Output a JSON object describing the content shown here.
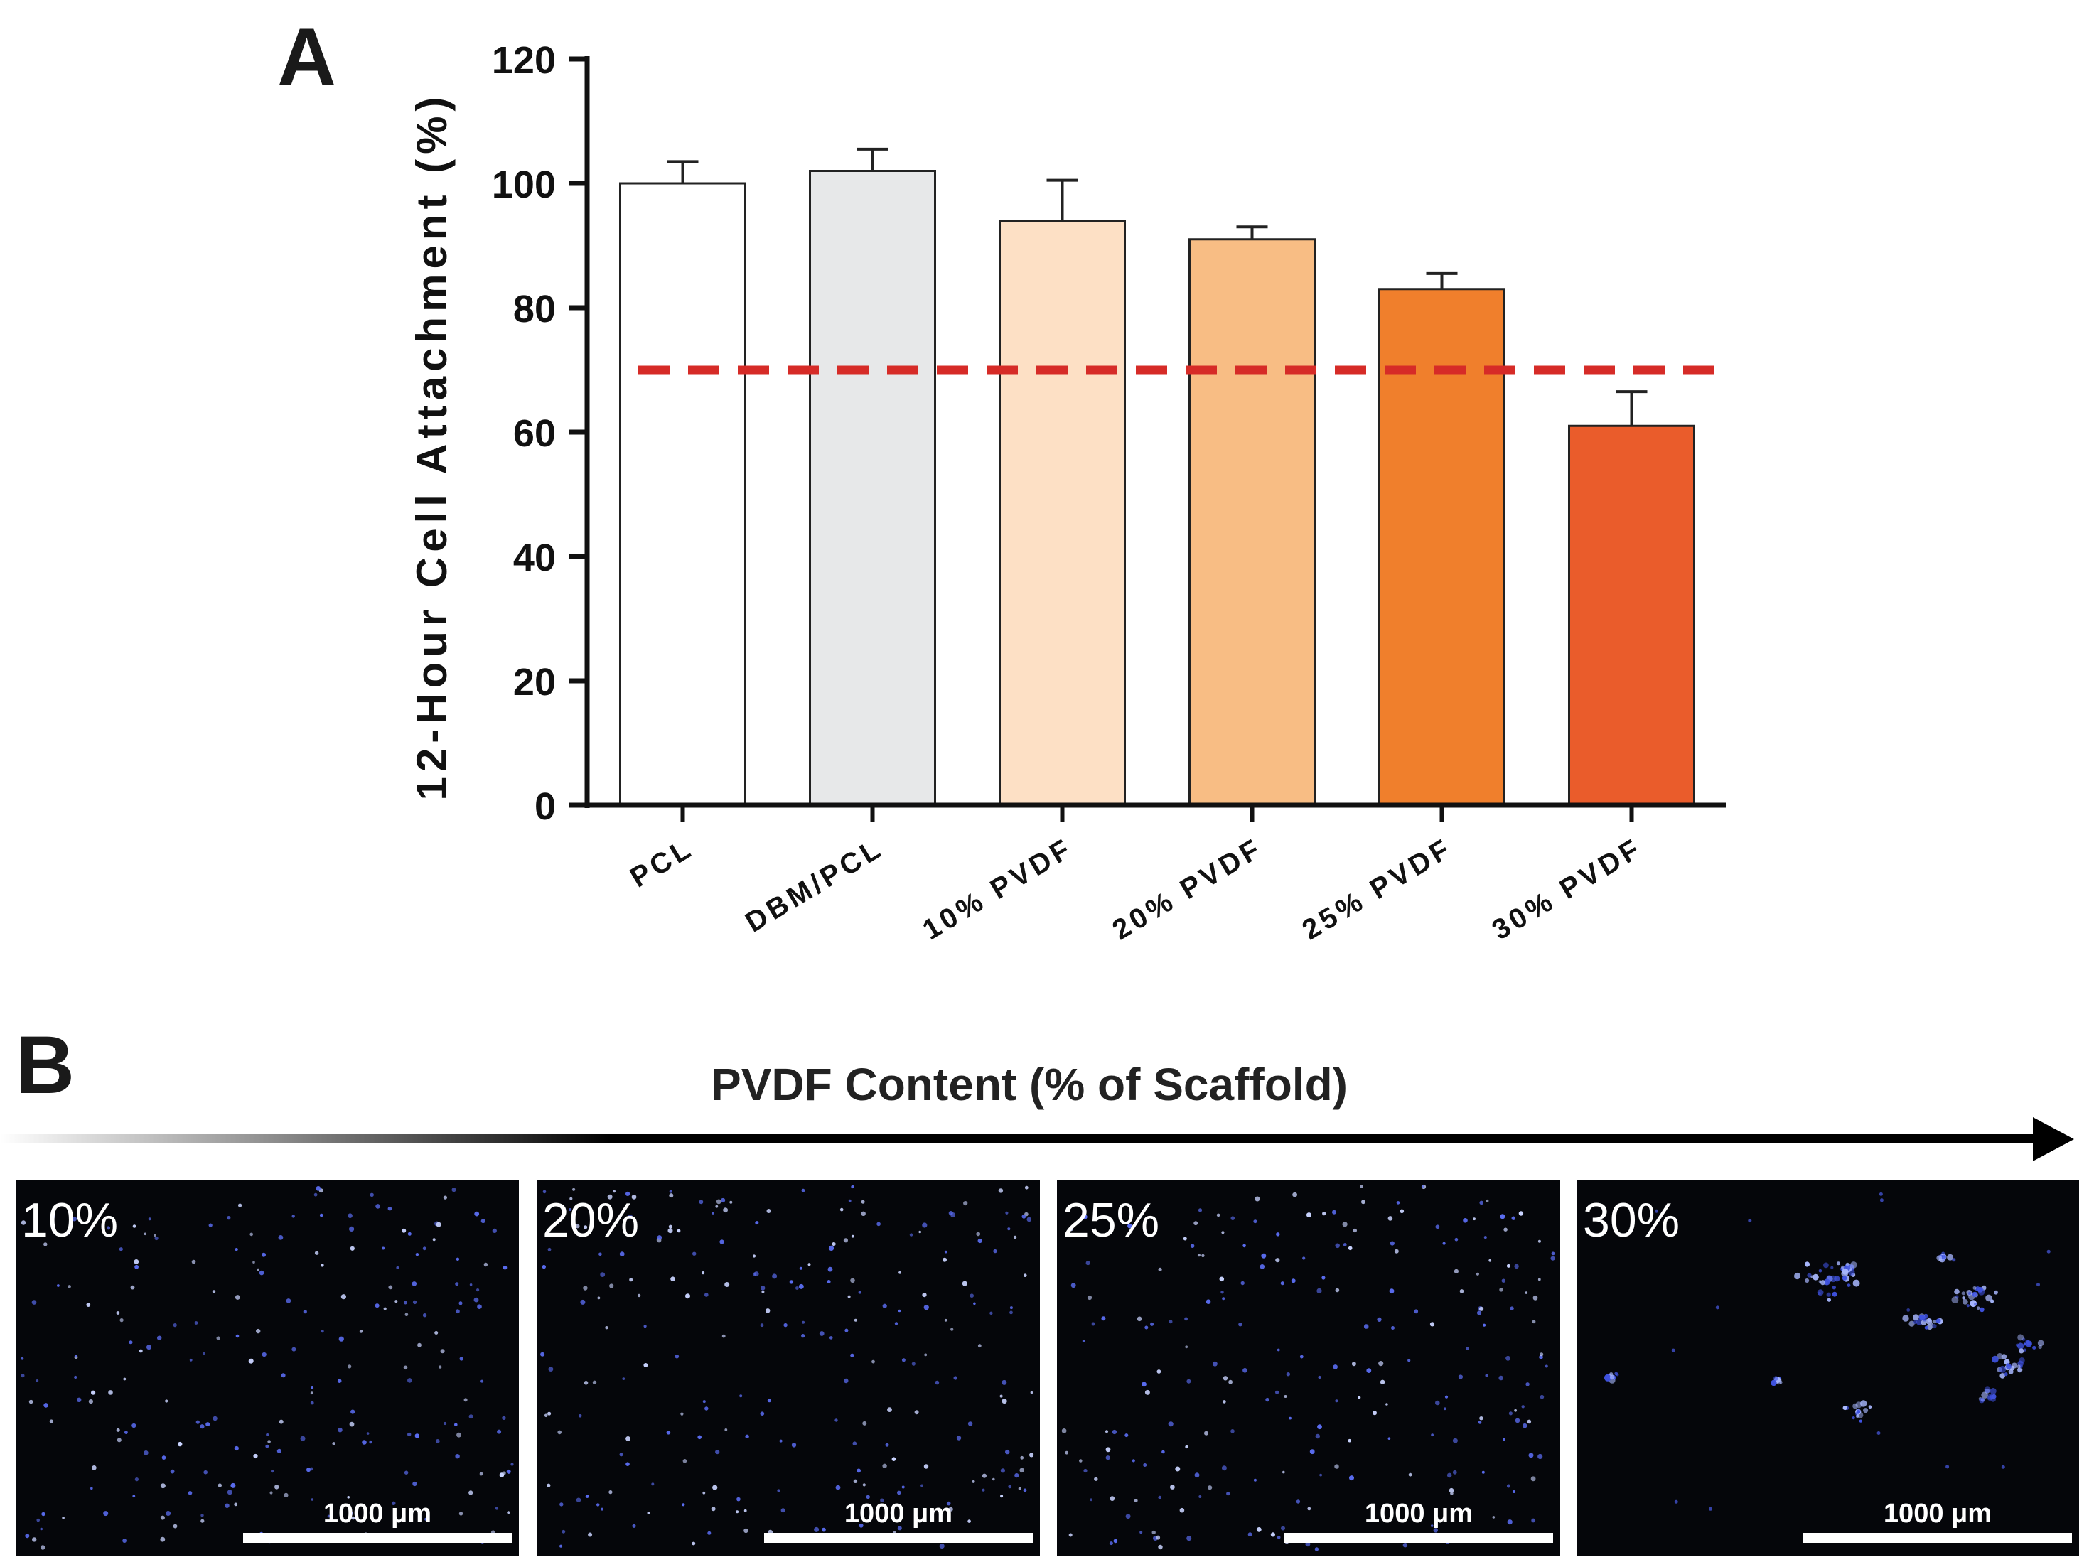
{
  "chart_data": {
    "type": "bar",
    "panel_label": "A",
    "categories": [
      "PCL",
      "DBM/PCL",
      "10% PVDF",
      "20% PVDF",
      "25% PVDF",
      "30% PVDF"
    ],
    "values": [
      100,
      102,
      94,
      91,
      83,
      61
    ],
    "errors": [
      3.5,
      3.5,
      6.5,
      2,
      2.5,
      5.5
    ],
    "bar_colors": [
      "#ffffff",
      "#e7e8e9",
      "#fde0c5",
      "#f8bd84",
      "#f07f2c",
      "#ea5c2b"
    ],
    "ylabel": "12-Hour Cell Attachment (%)",
    "xlabel": "",
    "ylim": [
      0,
      120
    ],
    "yticks": [
      0,
      20,
      40,
      60,
      80,
      100,
      120
    ],
    "threshold": 70,
    "threshold_color": "#d62b27"
  },
  "panel_b": {
    "label": "B",
    "title": "PVDF Content (% of Scaffold)",
    "images": [
      {
        "label": "10%",
        "scale_bar": "1000 μm"
      },
      {
        "label": "20%",
        "scale_bar": "1000 μm"
      },
      {
        "label": "25%",
        "scale_bar": "1000 μm"
      },
      {
        "label": "30%",
        "scale_bar": "1000 μm"
      }
    ]
  }
}
